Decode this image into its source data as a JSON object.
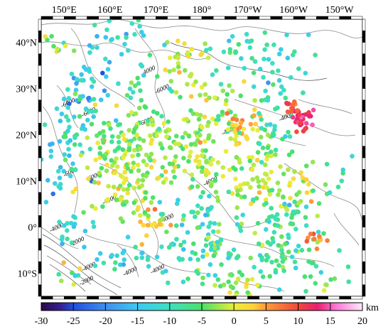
{
  "map": {
    "lon_range": [
      145,
      155
    ],
    "lat_range": [
      -15,
      45
    ],
    "lon_tick_labels": [
      {
        "lon": 150,
        "label": "150°E"
      },
      {
        "lon": 160,
        "label": "160°E"
      },
      {
        "lon": 170,
        "label": "170°E"
      },
      {
        "lon": 180,
        "label": "180°"
      },
      {
        "lon": 190,
        "label": "170°W"
      },
      {
        "lon": 200,
        "label": "160°W"
      },
      {
        "lon": 210,
        "label": "150°W"
      }
    ],
    "lat_tick_labels": [
      {
        "lat": 40,
        "label": "40°N"
      },
      {
        "lat": 30,
        "label": "30°N"
      },
      {
        "lat": 20,
        "label": "20°N"
      },
      {
        "lat": 10,
        "label": "10°N"
      },
      {
        "lat": 0,
        "label": "0°"
      },
      {
        "lat": -10,
        "label": "10°S"
      }
    ],
    "contour_labels": [
      {
        "lon": 168.5,
        "lat": 33.5,
        "text": "-4000"
      },
      {
        "lon": 171.5,
        "lat": 29.5,
        "text": "-6000"
      },
      {
        "lon": 151,
        "lat": 26.5,
        "text": "-6000"
      },
      {
        "lon": 155.5,
        "lat": 24.5,
        "text": "-6000"
      },
      {
        "lon": 168,
        "lat": 22.5,
        "text": "-6000"
      },
      {
        "lon": 151.5,
        "lat": 11.5,
        "text": "-6000"
      },
      {
        "lon": 156.5,
        "lat": 10.5,
        "text": "-6000"
      },
      {
        "lon": 160,
        "lat": 5.5,
        "text": "-4000"
      },
      {
        "lon": 172.5,
        "lat": 1.5,
        "text": "-4000"
      },
      {
        "lon": 182,
        "lat": 9.5,
        "text": "-4000"
      },
      {
        "lon": 186,
        "lat": 20.5,
        "text": "-4000"
      },
      {
        "lon": 198.5,
        "lat": 23.5,
        "text": "-4000"
      },
      {
        "lon": 148.5,
        "lat": -0.5,
        "text": "-4000"
      },
      {
        "lon": 153,
        "lat": -3.5,
        "text": "-2000"
      },
      {
        "lon": 155.5,
        "lat": -9,
        "text": "-4000"
      },
      {
        "lon": 155,
        "lat": -12,
        "text": "-2000"
      },
      {
        "lon": 164.5,
        "lat": -10,
        "text": "-4000"
      },
      {
        "lon": 170.5,
        "lat": -9.5,
        "text": "-4000"
      }
    ]
  },
  "colorbar": {
    "min": -30,
    "max": 20,
    "unit": "km",
    "tick_labels": [
      "-30",
      "-25",
      "-20",
      "-15",
      "-10",
      "-5",
      "0",
      "5",
      "10",
      "15",
      "20"
    ],
    "stops": [
      {
        "v": -30,
        "c": "#2a0a4a"
      },
      {
        "v": -27,
        "c": "#35208f"
      },
      {
        "v": -25,
        "c": "#1f4fe0"
      },
      {
        "v": -20,
        "c": "#3f8ff0"
      },
      {
        "v": -15,
        "c": "#3cc9f0"
      },
      {
        "v": -10,
        "c": "#3de0c0"
      },
      {
        "v": -5,
        "c": "#4ae06a"
      },
      {
        "v": -2,
        "c": "#a8e84a"
      },
      {
        "v": 0,
        "c": "#e8ef3a"
      },
      {
        "v": 3,
        "c": "#ffd13a"
      },
      {
        "v": 5,
        "c": "#ff9a3a"
      },
      {
        "v": 10,
        "c": "#f04a3a"
      },
      {
        "v": 13,
        "c": "#e82070"
      },
      {
        "v": 16,
        "c": "#ff7ad8"
      },
      {
        "v": 20,
        "c": "#ffe8f8"
      }
    ]
  },
  "point_clusters": [
    {
      "lon": 148,
      "lat": 40,
      "sd": [
        1.5,
        2.5
      ],
      "n": 10,
      "mean": -5,
      "spread": 10
    },
    {
      "lon": 162,
      "lat": 41,
      "sd": [
        4,
        2.5
      ],
      "n": 25,
      "mean": -12,
      "spread": 8
    },
    {
      "lon": 176,
      "lat": 36,
      "sd": [
        3,
        3
      ],
      "n": 30,
      "mean": 0,
      "spread": 6
    },
    {
      "lon": 188,
      "lat": 38,
      "sd": [
        4,
        3
      ],
      "n": 25,
      "mean": -10,
      "spread": 8
    },
    {
      "lon": 199,
      "lat": 36,
      "sd": [
        4,
        4
      ],
      "n": 20,
      "mean": -12,
      "spread": 7
    },
    {
      "lon": 155,
      "lat": 32,
      "sd": [
        3,
        3
      ],
      "n": 30,
      "mean": -15,
      "spread": 8
    },
    {
      "lon": 166,
      "lat": 30,
      "sd": [
        3,
        3
      ],
      "n": 20,
      "mean": -10,
      "spread": 8
    },
    {
      "lon": 182,
      "lat": 28,
      "sd": [
        4,
        3
      ],
      "n": 35,
      "mean": -2,
      "spread": 7
    },
    {
      "lon": 196,
      "lat": 28,
      "sd": [
        3,
        3
      ],
      "n": 20,
      "mean": -8,
      "spread": 6
    },
    {
      "lon": 202,
      "lat": 23,
      "sd": [
        1.2,
        1.2
      ],
      "n": 30,
      "mean": 13,
      "spread": 3
    },
    {
      "lon": 199.5,
      "lat": 25.5,
      "sd": [
        1,
        1
      ],
      "n": 10,
      "mean": 9,
      "spread": 3
    },
    {
      "lon": 152,
      "lat": 23,
      "sd": [
        3,
        4
      ],
      "n": 40,
      "mean": -12,
      "spread": 8
    },
    {
      "lon": 164,
      "lat": 20,
      "sd": [
        5,
        3
      ],
      "n": 80,
      "mean": -4,
      "spread": 6
    },
    {
      "lon": 180,
      "lat": 20,
      "sd": [
        5,
        3
      ],
      "n": 70,
      "mean": -3,
      "spread": 6
    },
    {
      "lon": 188,
      "lat": 20.5,
      "sd": [
        3,
        2
      ],
      "n": 30,
      "mean": 2,
      "spread": 7
    },
    {
      "lon": 194,
      "lat": 19,
      "sd": [
        3,
        3
      ],
      "n": 30,
      "mean": -7,
      "spread": 7
    },
    {
      "lon": 150,
      "lat": 12,
      "sd": [
        2.5,
        3
      ],
      "n": 25,
      "mean": -13,
      "spread": 8
    },
    {
      "lon": 163,
      "lat": 12,
      "sd": [
        5,
        3.5
      ],
      "n": 80,
      "mean": -1,
      "spread": 6
    },
    {
      "lon": 180,
      "lat": 11,
      "sd": [
        5,
        3
      ],
      "n": 55,
      "mean": -3,
      "spread": 6
    },
    {
      "lon": 190,
      "lat": 11,
      "sd": [
        3,
        3
      ],
      "n": 30,
      "mean": -1,
      "spread": 5
    },
    {
      "lon": 199,
      "lat": 10,
      "sd": [
        4,
        3.5
      ],
      "n": 45,
      "mean": -1,
      "spread": 5
    },
    {
      "lon": 210,
      "lat": 12,
      "sd": [
        3,
        3
      ],
      "n": 8,
      "mean": -10,
      "spread": 6
    },
    {
      "lon": 165,
      "lat": 5,
      "sd": [
        4,
        2
      ],
      "n": 30,
      "mean": -2,
      "spread": 5
    },
    {
      "lon": 170,
      "lat": 1,
      "sd": [
        1.5,
        2
      ],
      "n": 15,
      "mean": 3,
      "spread": 5
    },
    {
      "lon": 178,
      "lat": 3,
      "sd": [
        4,
        3
      ],
      "n": 25,
      "mean": -10,
      "spread": 6
    },
    {
      "lon": 196,
      "lat": 3,
      "sd": [
        4,
        3
      ],
      "n": 40,
      "mean": -6,
      "spread": 7
    },
    {
      "lon": 152,
      "lat": 1,
      "sd": [
        3,
        2
      ],
      "n": 20,
      "mean": -12,
      "spread": 6
    },
    {
      "lon": 163,
      "lat": -7,
      "sd": [
        4,
        2
      ],
      "n": 25,
      "mean": -13,
      "spread": 6
    },
    {
      "lon": 180,
      "lat": -5,
      "sd": [
        5,
        3.5
      ],
      "n": 70,
      "mean": -8,
      "spread": 8
    },
    {
      "lon": 198,
      "lat": -6,
      "sd": [
        5,
        3.5
      ],
      "n": 70,
      "mean": -7,
      "spread": 7
    },
    {
      "lon": 205,
      "lat": -3,
      "sd": [
        1.5,
        1
      ],
      "n": 10,
      "mean": 6,
      "spread": 3
    },
    {
      "lon": 188,
      "lat": -12.5,
      "sd": [
        3,
        1.5
      ],
      "n": 25,
      "mean": -2,
      "spread": 7
    },
    {
      "lon": 150,
      "lat": -11,
      "sd": [
        2,
        2
      ],
      "n": 8,
      "mean": -5,
      "spread": 10
    },
    {
      "lon": 208,
      "lat": -11,
      "sd": [
        3,
        2
      ],
      "n": 10,
      "mean": -5,
      "spread": 7
    }
  ]
}
